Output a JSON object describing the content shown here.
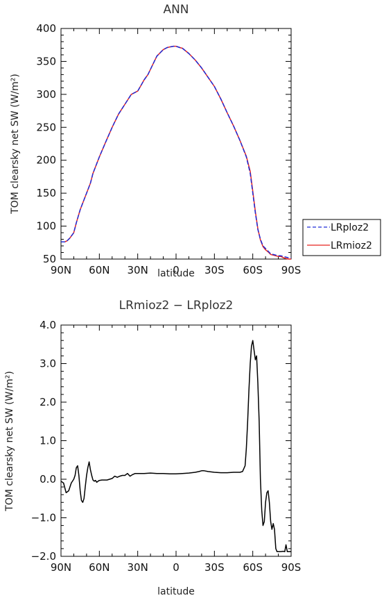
{
  "chart_data": [
    {
      "type": "line",
      "title": "ANN",
      "xlabel": "latitude",
      "ylabel": "TOM clearsky net SW (W/m²)",
      "xlim": [
        -90,
        90
      ],
      "ylim": [
        50,
        400
      ],
      "xticks": [
        -90,
        -60,
        -30,
        0,
        30,
        60,
        90
      ],
      "xtick_labels": [
        "90N",
        "60N",
        "30N",
        "0",
        "30S",
        "60S",
        "90S"
      ],
      "yticks": [
        50,
        100,
        150,
        200,
        250,
        300,
        350,
        400
      ],
      "ytick_labels": [
        "50",
        "100",
        "150",
        "200",
        "250",
        "300",
        "350",
        "400"
      ],
      "legend": {
        "placement": "right",
        "entries": [
          "LRploz2",
          "LRmioz2"
        ]
      },
      "series": [
        {
          "name": "LRploz2",
          "color": "#1f2bd6",
          "style": "dashed",
          "x": [
            -90,
            -87,
            -85,
            -83,
            -80,
            -78,
            -75,
            -72,
            -70,
            -67,
            -65,
            -62,
            -60,
            -55,
            -50,
            -45,
            -40,
            -35,
            -30,
            -27,
            -25,
            -22,
            -20,
            -17,
            -15,
            -12,
            -10,
            -7,
            -5,
            -2,
            0,
            3,
            5,
            10,
            15,
            20,
            25,
            30,
            35,
            40,
            45,
            50,
            55,
            58,
            60,
            62,
            64,
            66,
            68,
            70,
            72,
            74,
            76,
            78,
            80,
            82,
            84,
            86,
            88,
            90
          ],
          "values": [
            76,
            76,
            78,
            82,
            90,
            105,
            125,
            140,
            150,
            165,
            180,
            195,
            205,
            228,
            250,
            270,
            285,
            300,
            305,
            315,
            322,
            330,
            338,
            350,
            358,
            364,
            368,
            371,
            372,
            373,
            373,
            371,
            370,
            362,
            352,
            340,
            326,
            312,
            293,
            272,
            252,
            230,
            205,
            180,
            150,
            120,
            95,
            80,
            70,
            66,
            62,
            58,
            57,
            56,
            55,
            55,
            54,
            53,
            52,
            52
          ]
        },
        {
          "name": "LRmioz2",
          "color": "#e8231e",
          "style": "solid",
          "x": [
            -90,
            -87,
            -85,
            -83,
            -80,
            -78,
            -75,
            -72,
            -70,
            -67,
            -65,
            -62,
            -60,
            -55,
            -50,
            -45,
            -40,
            -35,
            -30,
            -27,
            -25,
            -22,
            -20,
            -17,
            -15,
            -12,
            -10,
            -7,
            -5,
            -2,
            0,
            3,
            5,
            10,
            15,
            20,
            25,
            30,
            35,
            40,
            45,
            50,
            55,
            58,
            60,
            62,
            64,
            66,
            68,
            70,
            72,
            74,
            76,
            78,
            80,
            82,
            84,
            86,
            88,
            90
          ],
          "values": [
            76,
            76,
            78,
            82,
            90,
            105,
            125,
            140,
            150,
            165,
            180,
            195,
            205,
            228,
            250,
            270,
            285,
            300,
            305,
            315,
            322,
            330,
            338,
            350,
            358,
            364,
            368,
            371,
            372,
            373,
            373,
            371,
            370,
            362,
            352,
            340,
            326,
            312,
            293,
            272,
            252,
            230,
            206,
            183,
            153,
            122,
            96,
            79,
            69,
            64,
            61,
            57,
            56,
            55,
            54,
            54,
            52,
            51,
            50,
            50
          ]
        }
      ]
    },
    {
      "type": "line",
      "title": "LRmioz2 − LRploz2",
      "xlabel": "latitude",
      "ylabel": "TOM clearsky net SW (W/m²)",
      "xlim": [
        -90,
        90
      ],
      "ylim": [
        -2.0,
        4.0
      ],
      "xticks": [
        -90,
        -60,
        -30,
        0,
        30,
        60,
        90
      ],
      "xtick_labels": [
        "90N",
        "60N",
        "30N",
        "0",
        "30S",
        "60S",
        "90S"
      ],
      "yticks": [
        -2.0,
        -1.0,
        0.0,
        1.0,
        2.0,
        3.0,
        4.0
      ],
      "ytick_labels": [
        "−2.0",
        "−1.0",
        "0.0",
        "1.0",
        "2.0",
        "3.0",
        "4.0"
      ],
      "series": [
        {
          "color": "#000000",
          "x": [
            -90,
            -88,
            -86,
            -84,
            -82,
            -80,
            -79,
            -78,
            -77,
            -76,
            -75,
            -74,
            -73,
            -72,
            -71,
            -70,
            -69,
            -68,
            -67,
            -66,
            -65,
            -64,
            -63,
            -62,
            -61,
            -60,
            -58,
            -56,
            -54,
            -52,
            -50,
            -48,
            -46,
            -44,
            -42,
            -40,
            -38,
            -36,
            -34,
            -32,
            -30,
            -25,
            -20,
            -15,
            -10,
            -5,
            0,
            5,
            10,
            15,
            18,
            20,
            22,
            25,
            30,
            35,
            40,
            45,
            50,
            52,
            54,
            55,
            56,
            57,
            58,
            59,
            60,
            61,
            62,
            63,
            64,
            65,
            66,
            67,
            68,
            69,
            70,
            71,
            72,
            73,
            74,
            75,
            76,
            77,
            78,
            79,
            80,
            82,
            84,
            85,
            86,
            87,
            88,
            89,
            90
          ],
          "values": [
            -0.05,
            -0.1,
            -0.35,
            -0.3,
            -0.1,
            0.0,
            0.1,
            0.3,
            0.35,
            0.1,
            -0.3,
            -0.55,
            -0.6,
            -0.5,
            -0.2,
            0.1,
            0.3,
            0.45,
            0.25,
            0.1,
            -0.02,
            -0.05,
            -0.03,
            -0.08,
            -0.05,
            -0.03,
            -0.02,
            -0.02,
            -0.02,
            0.0,
            0.02,
            0.08,
            0.05,
            0.08,
            0.1,
            0.1,
            0.15,
            0.08,
            0.12,
            0.15,
            0.15,
            0.15,
            0.16,
            0.15,
            0.15,
            0.14,
            0.14,
            0.15,
            0.16,
            0.18,
            0.2,
            0.22,
            0.22,
            0.2,
            0.18,
            0.17,
            0.17,
            0.18,
            0.18,
            0.2,
            0.35,
            0.8,
            1.5,
            2.3,
            3.0,
            3.45,
            3.6,
            3.35,
            3.1,
            3.2,
            2.5,
            1.5,
            0.0,
            -0.8,
            -1.2,
            -1.1,
            -0.6,
            -0.35,
            -0.3,
            -0.6,
            -1.1,
            -1.3,
            -1.15,
            -1.3,
            -1.8,
            -1.88,
            -1.88,
            -1.88,
            -1.87,
            -1.88,
            -1.7,
            -1.88,
            -1.88,
            -1.88,
            -1.88
          ]
        }
      ]
    }
  ]
}
